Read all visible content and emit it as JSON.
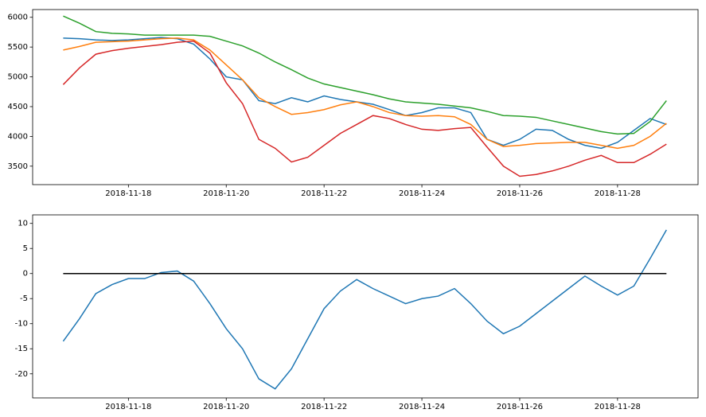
{
  "chart_data": [
    {
      "type": "line",
      "x": [
        "2018-11-16T16:00",
        "2018-11-17T00:00",
        "2018-11-17T08:00",
        "2018-11-17T16:00",
        "2018-11-18T00:00",
        "2018-11-18T08:00",
        "2018-11-18T16:00",
        "2018-11-19T00:00",
        "2018-11-19T08:00",
        "2018-11-19T16:00",
        "2018-11-20T00:00",
        "2018-11-20T08:00",
        "2018-11-20T16:00",
        "2018-11-21T00:00",
        "2018-11-21T08:00",
        "2018-11-21T16:00",
        "2018-11-22T00:00",
        "2018-11-22T08:00",
        "2018-11-22T16:00",
        "2018-11-23T00:00",
        "2018-11-23T08:00",
        "2018-11-23T16:00",
        "2018-11-24T00:00",
        "2018-11-24T08:00",
        "2018-11-24T16:00",
        "2018-11-25T00:00",
        "2018-11-25T08:00",
        "2018-11-25T16:00",
        "2018-11-26T00:00",
        "2018-11-26T08:00",
        "2018-11-26T16:00",
        "2018-11-27T00:00",
        "2018-11-27T08:00",
        "2018-11-27T16:00",
        "2018-11-28T00:00",
        "2018-11-28T08:00",
        "2018-11-28T16:00",
        "2018-11-29T00:00"
      ],
      "series": [
        {
          "color": "#1f77b4",
          "values": [
            5650,
            5640,
            5620,
            5610,
            5620,
            5640,
            5660,
            5640,
            5550,
            5300,
            5000,
            4950,
            4600,
            4550,
            4650,
            4580,
            4680,
            4620,
            4580,
            4540,
            4450,
            4350,
            4400,
            4480,
            4480,
            4400,
            3950,
            3850,
            3950,
            4120,
            4100,
            3950,
            3850,
            3800,
            3900,
            4100,
            4300,
            4200
          ]
        },
        {
          "color": "#ff7f0e",
          "values": [
            5450,
            5510,
            5580,
            5590,
            5600,
            5620,
            5640,
            5650,
            5620,
            5450,
            5200,
            4950,
            4650,
            4500,
            4370,
            4400,
            4450,
            4530,
            4580,
            4500,
            4400,
            4350,
            4340,
            4350,
            4330,
            4200,
            3950,
            3830,
            3850,
            3880,
            3890,
            3900,
            3900,
            3850,
            3800,
            3850,
            4000,
            4220
          ]
        },
        {
          "color": "#2ca02c",
          "values": [
            6020,
            5900,
            5760,
            5730,
            5720,
            5700,
            5700,
            5700,
            5700,
            5680,
            5600,
            5520,
            5400,
            5250,
            5120,
            4980,
            4880,
            4820,
            4760,
            4700,
            4630,
            4580,
            4560,
            4540,
            4510,
            4480,
            4420,
            4350,
            4340,
            4320,
            4260,
            4200,
            4140,
            4080,
            4040,
            4050,
            4250,
            4600
          ]
        },
        {
          "color": "#d62728",
          "values": [
            4870,
            5150,
            5380,
            5440,
            5480,
            5510,
            5540,
            5580,
            5600,
            5400,
            4900,
            4550,
            3950,
            3800,
            3570,
            3650,
            3850,
            4050,
            4200,
            4350,
            4300,
            4200,
            4120,
            4100,
            4130,
            4150,
            3820,
            3500,
            3330,
            3360,
            3420,
            3500,
            3600,
            3680,
            3560,
            3560,
            3700,
            3870
          ]
        }
      ],
      "xlim": [
        "2018-11-16T01:00",
        "2018-11-29T15:30"
      ],
      "xticks": [
        "2018-11-18",
        "2018-11-20",
        "2018-11-22",
        "2018-11-24",
        "2018-11-26",
        "2018-11-28"
      ],
      "ylim": [
        3190,
        6130
      ],
      "yticks": [
        3500,
        4000,
        4500,
        5000,
        5500,
        6000
      ]
    },
    {
      "type": "line",
      "x": [
        "2018-11-16T16:00",
        "2018-11-17T00:00",
        "2018-11-17T08:00",
        "2018-11-17T16:00",
        "2018-11-18T00:00",
        "2018-11-18T08:00",
        "2018-11-18T16:00",
        "2018-11-19T00:00",
        "2018-11-19T08:00",
        "2018-11-19T16:00",
        "2018-11-20T00:00",
        "2018-11-20T08:00",
        "2018-11-20T16:00",
        "2018-11-21T00:00",
        "2018-11-21T08:00",
        "2018-11-21T16:00",
        "2018-11-22T00:00",
        "2018-11-22T08:00",
        "2018-11-22T16:00",
        "2018-11-23T00:00",
        "2018-11-23T08:00",
        "2018-11-23T16:00",
        "2018-11-24T00:00",
        "2018-11-24T08:00",
        "2018-11-24T16:00",
        "2018-11-25T00:00",
        "2018-11-25T08:00",
        "2018-11-25T16:00",
        "2018-11-26T00:00",
        "2018-11-26T08:00",
        "2018-11-26T16:00",
        "2018-11-27T00:00",
        "2018-11-27T08:00",
        "2018-11-27T16:00",
        "2018-11-28T00:00",
        "2018-11-28T08:00",
        "2018-11-28T16:00",
        "2018-11-29T00:00"
      ],
      "series": [
        {
          "color": "#1f77b4",
          "values": [
            -13.5,
            -9,
            -4,
            -2.2,
            -1,
            -1,
            0.2,
            0.5,
            -1.5,
            -6,
            -11,
            -15,
            -21,
            -23,
            -19,
            -13,
            -7,
            -3.5,
            -1.2,
            -3,
            -4.5,
            -6,
            -5,
            -4.5,
            -3,
            -6,
            -9.5,
            -12,
            -10.5,
            -8,
            -5.5,
            -3,
            -0.5,
            -2.5,
            -4.3,
            -2.5,
            3,
            8.7
          ]
        },
        {
          "color": "#000000",
          "values": [
            0,
            0,
            0,
            0,
            0,
            0,
            0,
            0,
            0,
            0,
            0,
            0,
            0,
            0,
            0,
            0,
            0,
            0,
            0,
            0,
            0,
            0,
            0,
            0,
            0,
            0,
            0,
            0,
            0,
            0,
            0,
            0,
            0,
            0,
            0,
            0,
            0,
            0
          ]
        }
      ],
      "xlim": [
        "2018-11-16T01:00",
        "2018-11-29T15:30"
      ],
      "xticks": [
        "2018-11-18",
        "2018-11-20",
        "2018-11-22",
        "2018-11-24",
        "2018-11-26",
        "2018-11-28"
      ],
      "ylim": [
        -24.8,
        11.7
      ],
      "yticks": [
        -20,
        -15,
        -10,
        -5,
        0,
        5,
        10
      ]
    }
  ]
}
